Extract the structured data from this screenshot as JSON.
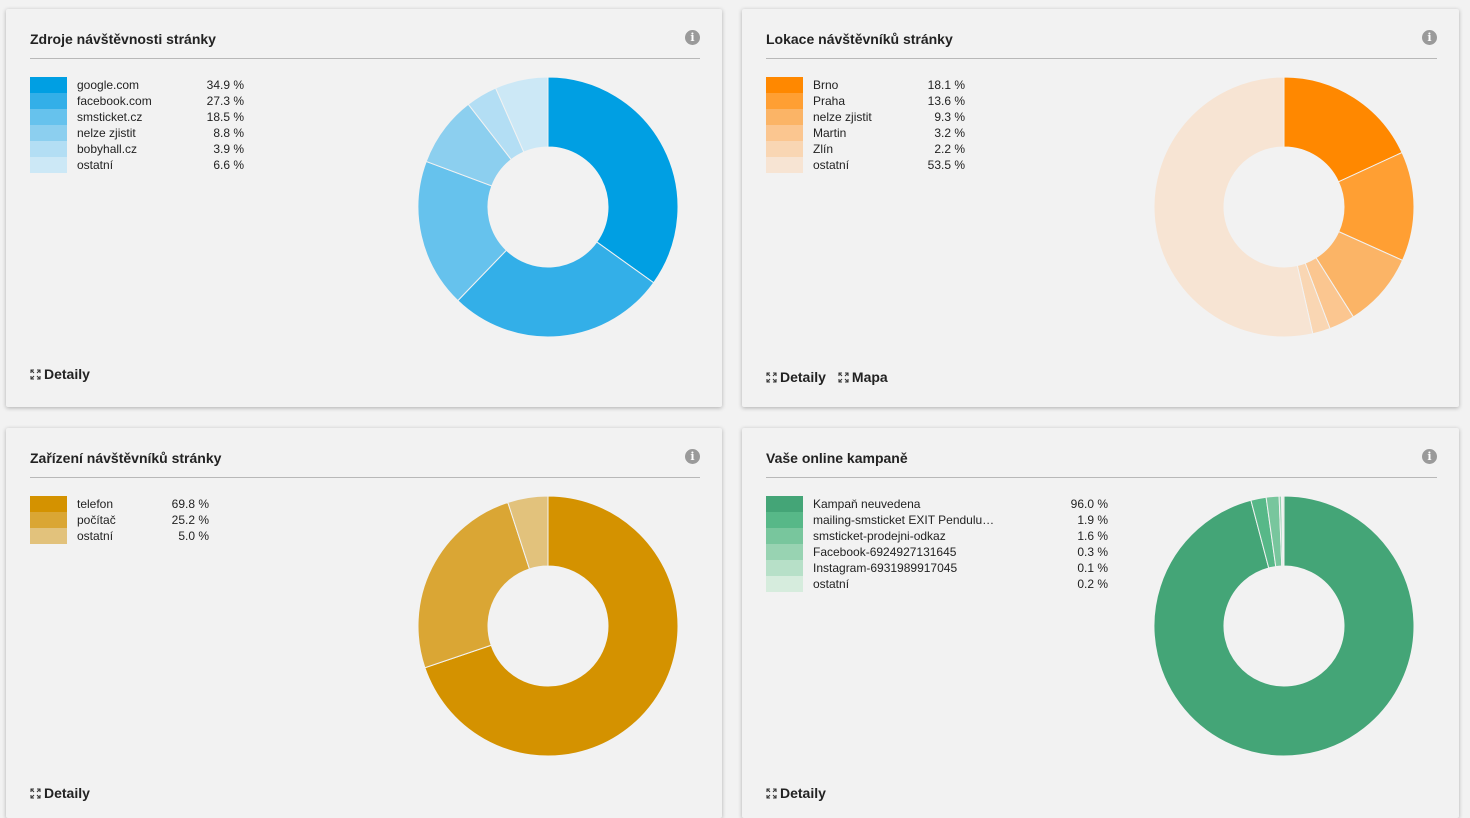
{
  "cards": [
    {
      "title": "Zdroje návštěvnosti stránky",
      "info_icon": "info-icon",
      "links": [
        "Detaily"
      ],
      "legend": [
        {
          "label": "google.com",
          "value": "34.9 %",
          "color": "#009fe3"
        },
        {
          "label": "facebook.com",
          "value": "27.3 %",
          "color": "#33afe8"
        },
        {
          "label": "smsticket.cz",
          "value": "18.5 %",
          "color": "#66c2ed"
        },
        {
          "label": "nelze zjistit",
          "value": "8.8 %",
          "color": "#8ccfef"
        },
        {
          "label": "bobyhall.cz",
          "value": "3.9 %",
          "color": "#b3def4"
        },
        {
          "label": "ostatní",
          "value": "6.6 %",
          "color": "#cce8f6"
        }
      ]
    },
    {
      "title": "Lokace návštěvníků stránky",
      "info_icon": "info-icon",
      "links": [
        "Detaily",
        "Mapa"
      ],
      "legend": [
        {
          "label": "Brno",
          "value": "18.1 %",
          "color": "#ff8800"
        },
        {
          "label": "Praha",
          "value": "13.6 %",
          "color": "#ff9f33"
        },
        {
          "label": "nelze zjistit",
          "value": "9.3 %",
          "color": "#fbb466"
        },
        {
          "label": "Martin",
          "value": "3.2 %",
          "color": "#fbc690"
        },
        {
          "label": "Zlín",
          "value": "2.2 %",
          "color": "#f9d6b3"
        },
        {
          "label": "ostatní",
          "value": "53.5 %",
          "color": "#f7e4d3"
        }
      ]
    },
    {
      "title": "Zařízení návštěvníků stránky",
      "info_icon": "info-icon",
      "links": [
        "Detaily"
      ],
      "legend": [
        {
          "label": "telefon",
          "value": "69.8 %",
          "color": "#d49200"
        },
        {
          "label": "počítač",
          "value": "25.2 %",
          "color": "#daa634"
        },
        {
          "label": "ostatní",
          "value": "5.0 %",
          "color": "#e2c27c"
        }
      ]
    },
    {
      "title": "Vaše online kampaně",
      "info_icon": "info-icon",
      "links": [
        "Detaily"
      ],
      "legend": [
        {
          "label": "Kampaň neuvedena",
          "value": "96.0 %",
          "color": "#44a577"
        },
        {
          "label": "mailing-smsticket EXIT Pendulu…",
          "value": "1.9 %",
          "color": "#57b888"
        },
        {
          "label": "smsticket-prodejni-odkaz",
          "value": "1.6 %",
          "color": "#78c69d"
        },
        {
          "label": "Facebook-6924927131645",
          "value": "0.3 %",
          "color": "#98d3b2"
        },
        {
          "label": "Instagram-6931989917045",
          "value": "0.1 %",
          "color": "#b7e0c8"
        },
        {
          "label": "ostatní",
          "value": "0.2 %",
          "color": "#d6ecdd"
        }
      ]
    }
  ],
  "chart_data": [
    {
      "type": "pie",
      "title": "Zdroje návštěvnosti stránky",
      "categories": [
        "google.com",
        "facebook.com",
        "smsticket.cz",
        "nelze zjistit",
        "bobyhall.cz",
        "ostatní"
      ],
      "values": [
        34.9,
        27.3,
        18.5,
        8.8,
        3.9,
        6.6
      ]
    },
    {
      "type": "pie",
      "title": "Lokace návštěvníků stránky",
      "categories": [
        "Brno",
        "Praha",
        "nelze zjistit",
        "Martin",
        "Zlín",
        "ostatní"
      ],
      "values": [
        18.1,
        13.6,
        9.3,
        3.2,
        2.2,
        53.5
      ]
    },
    {
      "type": "pie",
      "title": "Zařízení návštěvníků stránky",
      "categories": [
        "telefon",
        "počítač",
        "ostatní"
      ],
      "values": [
        69.8,
        25.2,
        5.0
      ]
    },
    {
      "type": "pie",
      "title": "Vaše online kampaně",
      "categories": [
        "Kampaň neuvedena",
        "mailing-smsticket EXIT Pendulu…",
        "smsticket-prodejni-odkaz",
        "Facebook-6924927131645",
        "Instagram-6931989917045",
        "ostatní"
      ],
      "values": [
        96.0,
        1.9,
        1.6,
        0.3,
        0.1,
        0.2
      ]
    }
  ]
}
